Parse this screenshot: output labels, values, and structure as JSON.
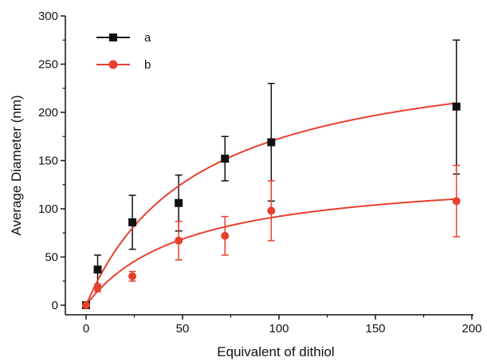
{
  "chart_data": {
    "type": "scatter",
    "xlabel": "Equivalent of dithiol",
    "ylabel": "Average Diameter (nm)",
    "xlim": [
      0,
      200
    ],
    "ylim": [
      0,
      300
    ],
    "xticks": [
      0,
      50,
      100,
      150,
      200
    ],
    "yticks": [
      0,
      50,
      100,
      150,
      200,
      250,
      300
    ],
    "xtick_labels": [
      "0",
      "50",
      "100",
      "150",
      "200"
    ],
    "ytick_labels": [
      "0",
      "50",
      "100",
      "150",
      "200",
      "250",
      "300"
    ],
    "grid": false,
    "legend_position": "top-left",
    "series": [
      {
        "name": "a",
        "color": "#111111",
        "marker": "square",
        "x": [
          0,
          6,
          24,
          48,
          72,
          96,
          192
        ],
        "y": [
          0,
          37,
          86,
          106,
          152,
          169,
          206
        ],
        "err_low": [
          0,
          17,
          28,
          29,
          23,
          61,
          70
        ],
        "err_high": [
          0,
          15,
          28,
          29,
          23,
          61,
          69
        ],
        "fit_color": "#e8402e"
      },
      {
        "name": "b",
        "color": "#e8402e",
        "marker": "circle",
        "x": [
          0,
          6,
          24,
          48,
          72,
          96,
          192
        ],
        "y": [
          0,
          18,
          30,
          67,
          72,
          98,
          108
        ],
        "err_low": [
          0,
          4,
          5,
          20,
          20,
          31,
          37
        ],
        "err_high": [
          0,
          4,
          5,
          20,
          20,
          31,
          37
        ],
        "fit_color": "#e8402e"
      }
    ]
  }
}
